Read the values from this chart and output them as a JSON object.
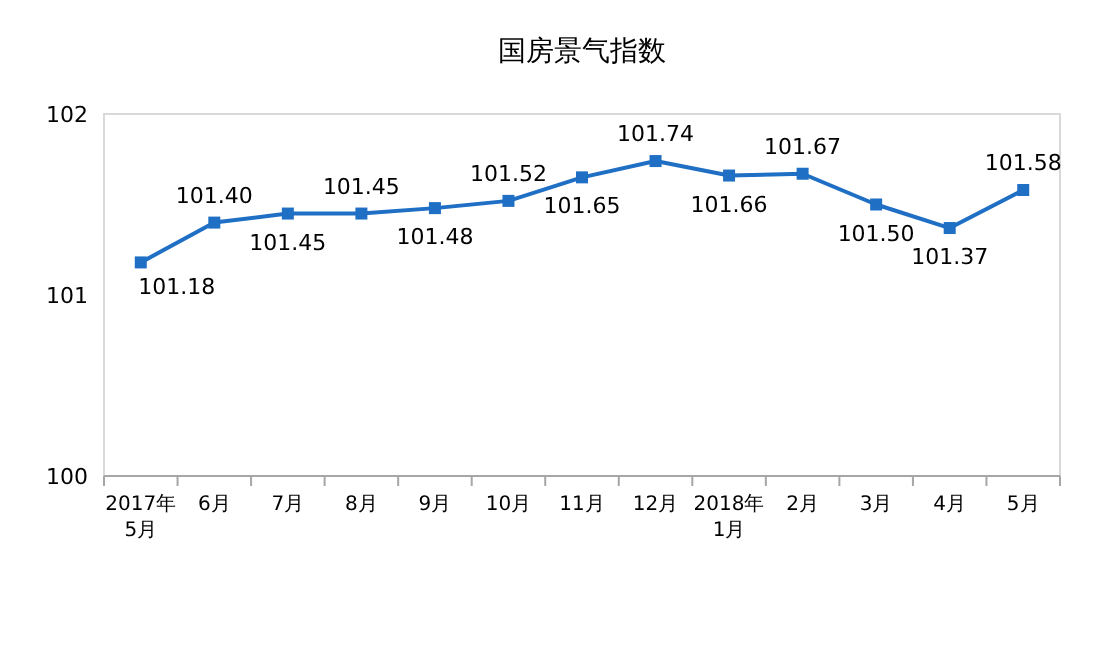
{
  "chart_data": {
    "type": "line",
    "title": "国房景气指数",
    "categories": [
      "2017年\n5月",
      "6月",
      "7月",
      "8月",
      "9月",
      "10月",
      "11月",
      "12月",
      "2018年\n1月",
      "2月",
      "3月",
      "4月",
      "5月"
    ],
    "series": [
      {
        "color": "#1f6fc5",
        "values": [
          101.18,
          101.4,
          101.45,
          101.45,
          101.48,
          101.52,
          101.65,
          101.74,
          101.66,
          101.67,
          101.5,
          101.37,
          101.58
        ],
        "value_labels": [
          "101.18",
          "101.40",
          "101.45",
          "101.45",
          "101.48",
          "101.52",
          "101.65",
          "101.74",
          "101.66",
          "101.67",
          "101.50",
          "101.37",
          "101.58"
        ]
      }
    ],
    "ylim": [
      100,
      102
    ],
    "yticks": [
      100,
      101,
      102
    ],
    "marker": "square",
    "grid": false
  }
}
